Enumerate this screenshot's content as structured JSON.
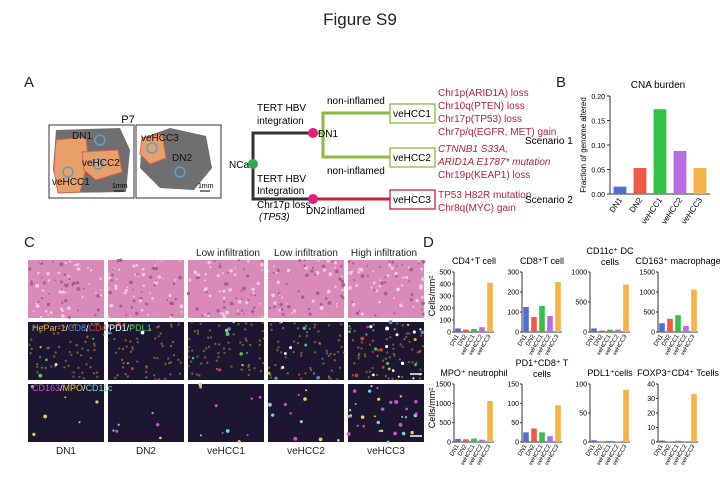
{
  "figure": {
    "title": "Figure S9"
  },
  "panel_a": {
    "letter": "A",
    "patient": "P7",
    "scale_bar": "1mm",
    "lesions": {
      "dn1": "DN1",
      "vehcc2": "veHCC2",
      "vehcc1": "veHCC1",
      "vehcc3": "veHCC3",
      "dn2": "DN2"
    },
    "tree": {
      "root": "NCa",
      "upper_branch": [
        "TERT HBV",
        "integration"
      ],
      "lower_branch": [
        "TERT HBV",
        "Integration",
        "Chr17p loss",
        "(TP53)"
      ],
      "node_dn1": "DN1",
      "node_dn2": "DN2",
      "non_inflamed_top": "non-inflamed",
      "non_inflamed_mid": "non-inflamed",
      "inflamed": "inflamed",
      "boxes": [
        "veHCC1",
        "veHCC2",
        "veHCC3"
      ],
      "events_hcc1": [
        "Chr1p(ARID1A) loss",
        "Chr10q(PTEN) loss",
        "Chr17p(TP53) loss",
        "Chr7p/q(EGFR, MET) gain"
      ],
      "events_hcc2": [
        "CTNNB1 S33A,",
        "ARID1A E1787* mutation",
        "Chr19p(KEAP1) loss"
      ],
      "events_hcc3": [
        "TP53 H82R mutation",
        "Chr8q(MYC) gain"
      ],
      "scenario1": "Scenario 1",
      "scenario2": "Scenario 2"
    }
  },
  "panel_b": {
    "letter": "B"
  },
  "panel_c": {
    "letter": "C",
    "col_headers": [
      "",
      "",
      "Low infiltration",
      "Low infiltration",
      "High infiltration"
    ],
    "col_labels": [
      "DN1",
      "DN2",
      "veHCC1",
      "veHCC2",
      "veHCC3"
    ],
    "stain_row2": [
      "HePar-1",
      "/",
      "CD8",
      "/",
      "CD4",
      "/",
      "PD1",
      "/",
      "PDL1"
    ],
    "stain_row3": [
      "CD163",
      "/",
      "MPO",
      "/",
      "CD11c"
    ],
    "colors": {
      "he": "#d98ab8",
      "if_dark": "#1c1630",
      "hepar": "#e0b040",
      "cd8": "#4a8ed8",
      "cd4": "#e03838",
      "pd1": "#ffffff",
      "pdl1": "#4ec860",
      "cd163": "#d050d0",
      "mpo": "#e8d040",
      "cd11c": "#70d8d8"
    }
  },
  "panel_d": {
    "letter": "D",
    "ylabel": "Cells/mm²"
  },
  "chart_data": [
    {
      "type": "bar",
      "title": "CNA burden",
      "ylabel": "Fraction of genome altered",
      "categories": [
        "DN1",
        "DN2",
        "veHCC1",
        "veHCC2",
        "veHCC3"
      ],
      "values": [
        0.015,
        0.053,
        0.173,
        0.088,
        0.053
      ],
      "ylim": [
        0,
        0.2
      ],
      "yticks": [
        "0.00",
        "0.05",
        "0.10",
        "0.15",
        "0.20"
      ],
      "colors": [
        "#4f6fd8",
        "#ef5a46",
        "#36c04a",
        "#b86ee0",
        "#f5b445"
      ]
    },
    {
      "type": "bar",
      "title": "CD4⁺T cell",
      "categories": [
        "DN1",
        "DN2",
        "veHCC1",
        "veHCC2",
        "veHCC3"
      ],
      "values": [
        30,
        20,
        25,
        40,
        410
      ],
      "ylim": [
        0,
        500
      ],
      "yticks": [
        "0",
        "100",
        "200",
        "300",
        "400",
        "500"
      ]
    },
    {
      "type": "bar",
      "title": "CD8⁺T cell",
      "categories": [
        "DN1",
        "DN2",
        "veHCC1",
        "veHCC2",
        "veHCC3"
      ],
      "values": [
        125,
        75,
        130,
        80,
        250
      ],
      "ylim": [
        0,
        300
      ],
      "yticks": [
        "0",
        "100",
        "200",
        "300"
      ]
    },
    {
      "type": "bar",
      "title": "CD11c⁺ DC cells",
      "categories": [
        "DN1",
        "DN2",
        "veHCC1",
        "veHCC2",
        "veHCC3"
      ],
      "values": [
        60,
        25,
        40,
        40,
        790
      ],
      "ylim": [
        0,
        1000
      ],
      "yticks": [
        "0",
        "500",
        "1000"
      ]
    },
    {
      "type": "bar",
      "title": "CD163⁺ macrophage",
      "categories": [
        "DN1",
        "DN2",
        "veHCC1",
        "veHCC2",
        "veHCC3"
      ],
      "values": [
        220,
        330,
        420,
        150,
        1060
      ],
      "ylim": [
        0,
        1500
      ],
      "yticks": [
        "0",
        "500",
        "1000",
        "1500"
      ]
    },
    {
      "type": "bar",
      "title": "MPO⁺ neutrophil",
      "categories": [
        "DN1",
        "DN2",
        "veHCC1",
        "veHCC2",
        "veHCC3"
      ],
      "values": [
        80,
        70,
        90,
        60,
        1060
      ],
      "ylim": [
        0,
        1500
      ],
      "yticks": [
        "0",
        "500",
        "1000",
        "1500"
      ]
    },
    {
      "type": "bar",
      "title": "PD1⁺CD8⁺ T cells",
      "categories": [
        "DN1",
        "DN2",
        "veHCC1",
        "veHCC2",
        "veHCC3"
      ],
      "values": [
        25,
        35,
        25,
        15,
        95
      ],
      "ylim": [
        0,
        150
      ],
      "yticks": [
        "0",
        "50",
        "100",
        "150"
      ]
    },
    {
      "type": "bar",
      "title": "PDL1⁺cells",
      "categories": [
        "DN1",
        "DN2",
        "veHCC1",
        "veHCC2",
        "veHCC3"
      ],
      "values": [
        3,
        1,
        2,
        1,
        90
      ],
      "ylim": [
        0,
        100
      ],
      "yticks": [
        "0",
        "50",
        "100"
      ]
    },
    {
      "type": "bar",
      "title": "FOXP3⁺CD4⁺ Tcells",
      "categories": [
        "DN1",
        "DN2",
        "veHCC1",
        "veHCC2",
        "veHCC3"
      ],
      "values": [
        1,
        0.3,
        0.8,
        0.5,
        33
      ],
      "ylim": [
        0,
        40
      ],
      "yticks": [
        "0",
        "10",
        "20",
        "30",
        "40"
      ]
    }
  ]
}
